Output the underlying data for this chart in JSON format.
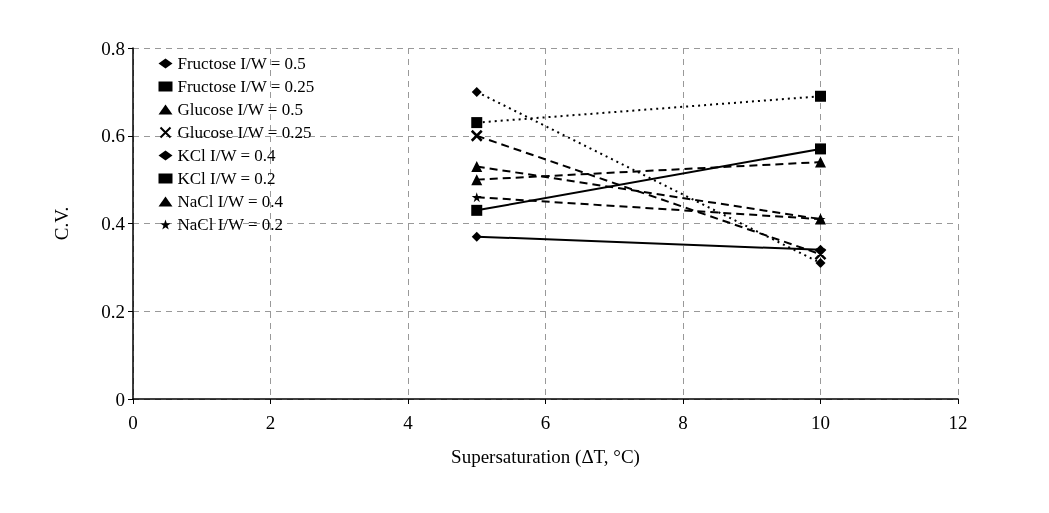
{
  "chart_data": {
    "type": "line",
    "xlabel": "Supersaturation (ΔT, °C)",
    "ylabel": "C.V.",
    "x": [
      5,
      10
    ],
    "xlim": [
      0,
      12
    ],
    "xticks": [
      0,
      2,
      4,
      6,
      8,
      10,
      12
    ],
    "ylim": [
      0,
      0.8
    ],
    "yticks": [
      0,
      0.2,
      0.4,
      0.6,
      0.8
    ],
    "grid": true,
    "legend": "top left",
    "series": [
      {
        "name": "Fructose I/W = 0.5",
        "color": "#000000",
        "marker": "diamond",
        "line_style": "solid",
        "values": [
          0.37,
          0.34
        ]
      },
      {
        "name": "Fructose I/W = 0.25",
        "color": "#000000",
        "marker": "square",
        "line_style": "solid",
        "values": [
          0.43,
          0.57
        ]
      },
      {
        "name": "Glucose I/W = 0.5",
        "color": "#000000",
        "marker": "triangle",
        "line_style": "dashed",
        "values": [
          0.5,
          0.54
        ]
      },
      {
        "name": "Glucose I/W = 0.25",
        "color": "#000000",
        "marker": "cross",
        "line_style": "dashed",
        "values": [
          0.6,
          0.33
        ]
      },
      {
        "name": "KCl I/W = 0.4",
        "color": "#000000",
        "marker": "diamond",
        "line_style": "dotted",
        "values": [
          0.7,
          0.31
        ]
      },
      {
        "name": "KCl I/W = 0.2",
        "color": "#000000",
        "marker": "square",
        "line_style": "dotted",
        "values": [
          0.63,
          0.69
        ]
      },
      {
        "name": "NaCl I/W = 0.4",
        "color": "#000000",
        "marker": "triangle",
        "line_style": "dashed",
        "values": [
          0.53,
          0.41
        ]
      },
      {
        "name": "NaCl I/W = 0.2",
        "color": "#000000",
        "marker": "star",
        "line_style": "dashed",
        "values": [
          0.46,
          0.41
        ]
      }
    ]
  }
}
